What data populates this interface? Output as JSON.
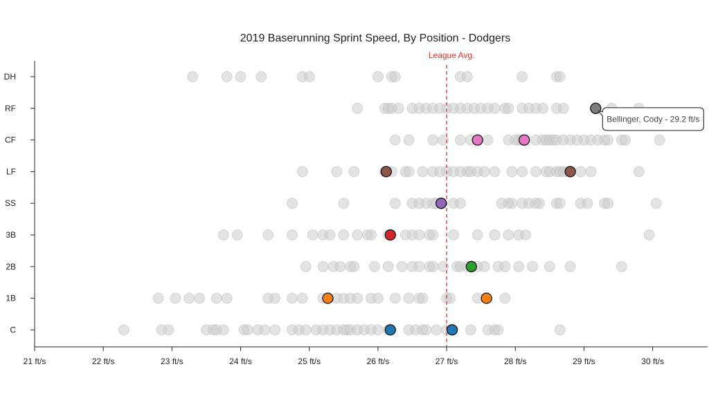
{
  "chart_data": {
    "type": "scatter",
    "title": "2019 Baserunning Sprint Speed, By Position - Dodgers",
    "xlim": [
      21,
      30.8
    ],
    "x_ticks": [
      21,
      22,
      23,
      24,
      25,
      26,
      27,
      28,
      29,
      30
    ],
    "x_tick_labels": [
      "21 ft/s",
      "22 ft/s",
      "23 ft/s",
      "24 ft/s",
      "25 ft/s",
      "26 ft/s",
      "27 ft/s",
      "28 ft/s",
      "29 ft/s",
      "30 ft/s"
    ],
    "categories": [
      "DH",
      "RF",
      "CF",
      "LF",
      "SS",
      "3B",
      "2B",
      "1B",
      "C"
    ],
    "league_avg": {
      "value": 27.0,
      "label": "League Avg."
    },
    "league_points": [
      {
        "pos": "DH",
        "values": [
          23.3,
          23.8,
          24.0,
          24.3,
          24.9,
          25.0,
          26.0,
          26.2,
          26.25,
          27.2,
          27.3,
          28.1,
          28.6,
          28.65
        ]
      },
      {
        "pos": "RF",
        "values": [
          25.7,
          26.1,
          26.15,
          26.2,
          26.3,
          26.5,
          26.6,
          26.7,
          26.8,
          26.9,
          27.0,
          27.1,
          27.2,
          27.3,
          27.4,
          27.5,
          27.6,
          27.7,
          27.85,
          27.9,
          28.1,
          28.2,
          28.3,
          28.4,
          28.6,
          28.7,
          29.4,
          29.8
        ]
      },
      {
        "pos": "CF",
        "values": [
          26.25,
          26.45,
          26.8,
          26.95,
          27.2,
          27.35,
          27.6,
          27.9,
          28.0,
          28.05,
          28.1,
          28.3,
          28.4,
          28.45,
          28.5,
          28.55,
          28.6,
          28.7,
          28.8,
          28.9,
          29.0,
          29.1,
          29.2,
          29.3,
          29.35,
          29.55,
          29.6,
          30.1
        ]
      },
      {
        "pos": "LF",
        "values": [
          24.9,
          25.4,
          25.65,
          26.1,
          26.2,
          26.4,
          26.45,
          26.65,
          26.8,
          26.9,
          27.0,
          27.1,
          27.2,
          27.3,
          27.35,
          27.45,
          27.55,
          27.7,
          27.95,
          28.1,
          28.3,
          28.45,
          28.5,
          28.6,
          28.65,
          28.7,
          28.75,
          28.95,
          29.1,
          29.8
        ]
      },
      {
        "pos": "SS",
        "values": [
          24.75,
          25.5,
          26.25,
          26.5,
          26.6,
          26.7,
          26.8,
          26.85,
          27.1,
          27.2,
          27.8,
          27.9,
          27.95,
          28.1,
          28.2,
          28.3,
          28.35,
          28.6,
          28.65,
          28.95,
          29.05,
          29.3,
          29.35,
          30.05
        ]
      },
      {
        "pos": "3B",
        "values": [
          23.75,
          23.95,
          24.4,
          24.75,
          25.05,
          25.2,
          25.3,
          25.5,
          25.7,
          25.85,
          25.9,
          26.15,
          26.4,
          26.5,
          26.6,
          26.75,
          26.8,
          27.1,
          27.45,
          27.7,
          27.9,
          28.05,
          28.15,
          29.95
        ]
      },
      {
        "pos": "2B",
        "values": [
          24.95,
          25.2,
          25.35,
          25.45,
          25.6,
          25.65,
          25.95,
          26.15,
          26.35,
          26.5,
          26.6,
          26.75,
          26.8,
          26.95,
          27.15,
          27.2,
          27.3,
          27.45,
          27.55,
          27.75,
          27.85,
          28.05,
          28.25,
          28.5,
          28.8,
          29.55
        ]
      },
      {
        "pos": "1B",
        "values": [
          22.8,
          23.05,
          23.25,
          23.4,
          23.65,
          23.8,
          24.4,
          24.5,
          24.75,
          24.9,
          25.2,
          25.4,
          25.5,
          25.6,
          25.7,
          25.9,
          26.0,
          26.25,
          26.45,
          26.6,
          26.65,
          27.0,
          27.05,
          27.45,
          27.85
        ]
      },
      {
        "pos": "C",
        "values": [
          22.3,
          22.85,
          22.95,
          23.5,
          23.6,
          23.65,
          23.75,
          24.05,
          24.1,
          24.25,
          24.35,
          24.5,
          24.75,
          24.85,
          24.95,
          25.1,
          25.2,
          25.3,
          25.4,
          25.5,
          25.55,
          25.6,
          25.7,
          25.8,
          25.9,
          26.0,
          26.15,
          26.45,
          26.55,
          26.65,
          26.7,
          26.85,
          27.0,
          27.35,
          27.6,
          27.7,
          27.75,
          28.65
        ]
      }
    ],
    "dodgers_points": [
      {
        "pos": "RF",
        "values": [
          29.17
        ],
        "color": "#7f7f7f"
      },
      {
        "pos": "CF",
        "values": [
          27.45,
          28.13
        ],
        "color": "#e377c2"
      },
      {
        "pos": "LF",
        "values": [
          26.12,
          28.8
        ],
        "color": "#8c564b"
      },
      {
        "pos": "SS",
        "values": [
          26.92
        ],
        "color": "#9467bd"
      },
      {
        "pos": "3B",
        "values": [
          26.18
        ],
        "color": "#d62728"
      },
      {
        "pos": "2B",
        "values": [
          27.36
        ],
        "color": "#2ca02c"
      },
      {
        "pos": "1B",
        "values": [
          25.27,
          27.58
        ],
        "color": "#ff7f0e"
      },
      {
        "pos": "C",
        "values": [
          26.18,
          27.08
        ],
        "color": "#1f77b4"
      }
    ],
    "tooltip": {
      "text": "Bellinger, Cody - 29.2 ft/s",
      "pos": "RF",
      "value": 29.17
    },
    "background_point_color": "#cccccc",
    "league_avg_color": "#e0322c",
    "grid": false
  }
}
